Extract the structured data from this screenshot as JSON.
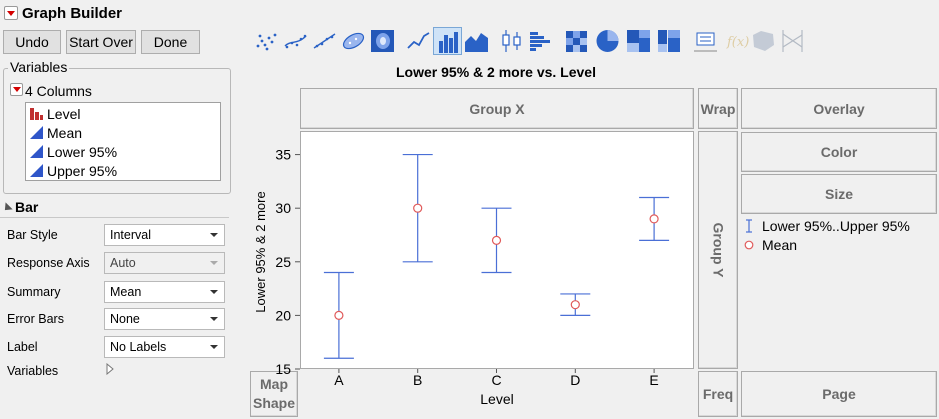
{
  "app": {
    "title": "Graph Builder"
  },
  "buttons": {
    "undo": "Undo",
    "start_over": "Start Over",
    "done": "Done"
  },
  "toolbar": {
    "items": [
      {
        "name": "points"
      },
      {
        "name": "smoother"
      },
      {
        "name": "line-of-fit"
      },
      {
        "name": "ellipse"
      },
      {
        "name": "contour"
      },
      {
        "name": "line"
      },
      {
        "name": "bar",
        "selected": true
      },
      {
        "name": "area"
      },
      {
        "name": "box-plot"
      },
      {
        "name": "histogram"
      },
      {
        "name": "heatmap"
      },
      {
        "name": "pie"
      },
      {
        "name": "treemap"
      },
      {
        "name": "mosaic"
      },
      {
        "name": "caption-box"
      },
      {
        "name": "formula",
        "disabled": true
      },
      {
        "name": "map-shapes",
        "disabled": true
      },
      {
        "name": "parallel",
        "disabled": true
      }
    ]
  },
  "variables": {
    "legend": "Variables",
    "columns_label": "4 Columns",
    "items": [
      {
        "label": "Level",
        "type": "nominal"
      },
      {
        "label": "Mean",
        "type": "continuous"
      },
      {
        "label": "Lower 95%",
        "type": "continuous"
      },
      {
        "label": "Upper 95%",
        "type": "continuous"
      }
    ]
  },
  "bar_options": {
    "title": "Bar",
    "rows": [
      {
        "label": "Bar Style",
        "value": "Interval"
      },
      {
        "label": "Response Axis",
        "value": "Auto",
        "disabled": true
      },
      {
        "label": "Summary",
        "value": "Mean"
      },
      {
        "label": "Error Bars",
        "value": "None"
      },
      {
        "label": "Label",
        "value": "No Labels"
      }
    ],
    "variables_label": "Variables"
  },
  "zones": {
    "group_x": "Group X",
    "group_y": "Group Y",
    "wrap": "Wrap",
    "overlay": "Overlay",
    "color": "Color",
    "size": "Size",
    "freq": "Freq",
    "page": "Page",
    "map_shape_line1": "Map",
    "map_shape_line2": "Shape"
  },
  "legend": {
    "interval": "Lower 95%..Upper 95%",
    "mean": "Mean"
  },
  "colors": {
    "interval": "#4a6fd6",
    "mean": "#e05a5a"
  },
  "chart_data": {
    "type": "interval",
    "title": "Lower 95% & 2 more vs. Level",
    "xlabel": "Level",
    "ylabel": "Lower 95% & 2 more",
    "categories": [
      "A",
      "B",
      "C",
      "D",
      "E"
    ],
    "series": [
      {
        "name": "Mean",
        "values": [
          20,
          30,
          27,
          21,
          29
        ]
      },
      {
        "name": "Lower 95%",
        "values": [
          16,
          25,
          24,
          20,
          27
        ]
      },
      {
        "name": "Upper 95%",
        "values": [
          24,
          35,
          30,
          22,
          31
        ]
      }
    ],
    "yticks": [
      15,
      20,
      25,
      30,
      35
    ],
    "ylim": [
      15,
      37.2
    ]
  }
}
